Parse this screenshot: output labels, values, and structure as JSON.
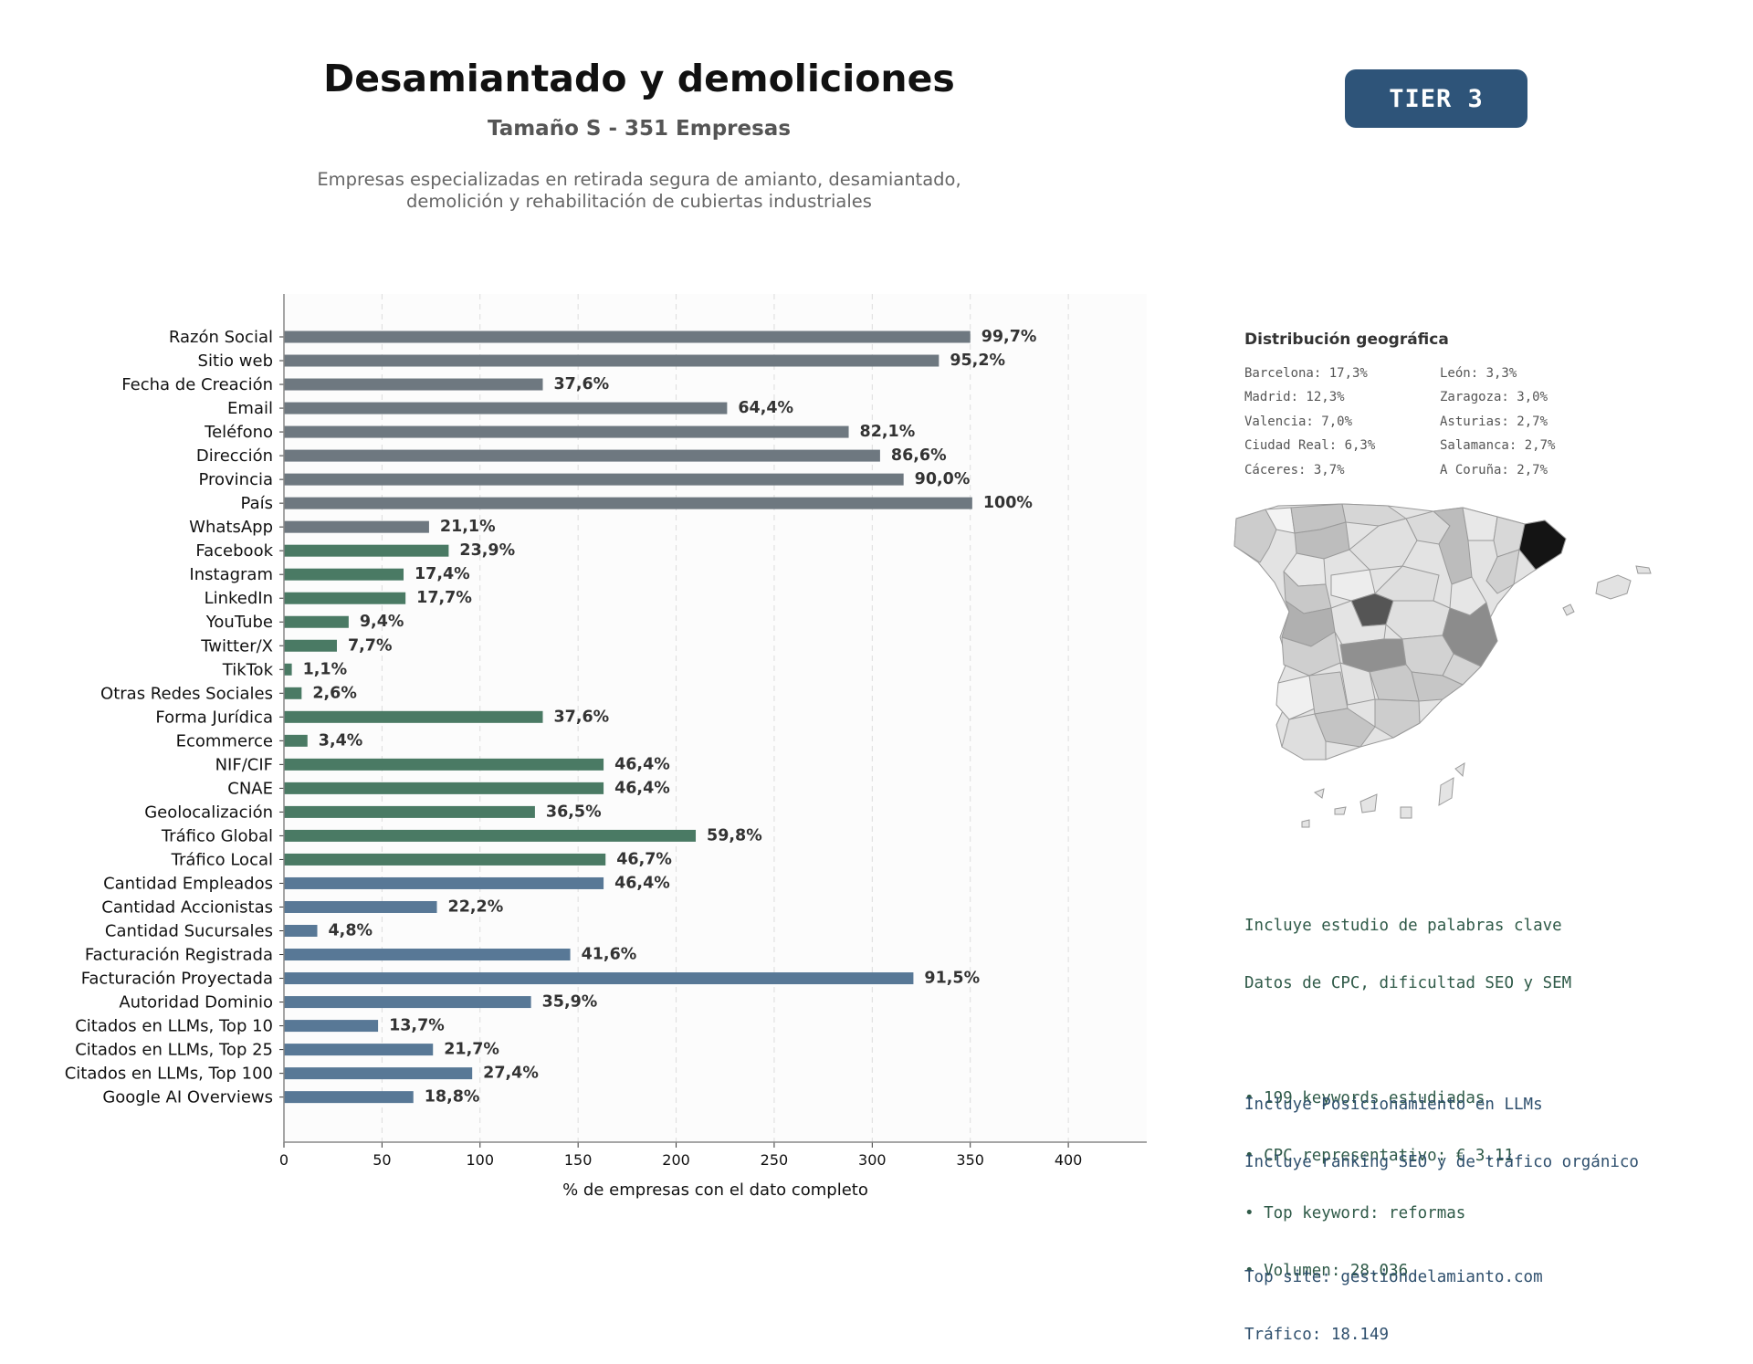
{
  "header": {
    "title": "Desamiantado y demoliciones",
    "subtitle": "Tamaño S - 351 Empresas",
    "description_line1": "Empresas especializadas en retirada segura de amianto, desamiantado,",
    "description_line2": "demolición y rehabilitación de cubiertas industriales",
    "tier_label": "TIER 3"
  },
  "colors": {
    "gray_bar": "#6e7880",
    "green_bar": "#4a7a64",
    "blue_bar": "#587896",
    "badge": "#2e5479"
  },
  "chart_data": {
    "type": "bar",
    "orientation": "horizontal",
    "xlabel": "% de empresas con el dato completo",
    "ylabel": "",
    "xlim": [
      0,
      440
    ],
    "xticks": [
      0,
      50,
      100,
      150,
      200,
      250,
      300,
      350,
      400
    ],
    "grid": "vertical dashed",
    "categories": [
      "Razón Social",
      "Sitio web",
      "Fecha de Creación",
      "Email",
      "Teléfono",
      "Dirección",
      "Provincia",
      "País",
      "WhatsApp",
      "Facebook",
      "Instagram",
      "LinkedIn",
      "YouTube",
      "Twitter/X",
      "TikTok",
      "Otras Redes Sociales",
      "Forma Jurídica",
      "Ecommerce",
      "NIF/CIF",
      "CNAE",
      "Geolocalización",
      "Tráfico Global",
      "Tráfico Local",
      "Cantidad Empleados",
      "Cantidad Accionistas",
      "Cantidad Sucursales",
      "Facturación Registrada",
      "Facturación Proyectada",
      "Autoridad Dominio",
      "Citados en LLMs, Top 10",
      "Citados en LLMs, Top 25",
      "Citados en LLMs, Top 100",
      "Google AI Overviews"
    ],
    "values": [
      350,
      334,
      132,
      226,
      288,
      304,
      316,
      351,
      74,
      84,
      61,
      62,
      33,
      27,
      4,
      9,
      132,
      12,
      163,
      163,
      128,
      210,
      164,
      163,
      78,
      17,
      146,
      321,
      126,
      48,
      76,
      96,
      66
    ],
    "labels": [
      "99,7%",
      "95,2%",
      "37,6%",
      "64,4%",
      "82,1%",
      "86,6%",
      "90,0%",
      "100%",
      "21,1%",
      "23,9%",
      "17,4%",
      "17,7%",
      "9,4%",
      "7,7%",
      "1,1%",
      "2,6%",
      "37,6%",
      "3,4%",
      "46,4%",
      "46,4%",
      "36,5%",
      "59,8%",
      "46,7%",
      "46,4%",
      "22,2%",
      "4,8%",
      "41,6%",
      "91,5%",
      "35,9%",
      "13,7%",
      "21,7%",
      "27,4%",
      "18,8%"
    ],
    "groups": [
      "gray",
      "gray",
      "gray",
      "gray",
      "gray",
      "gray",
      "gray",
      "gray",
      "gray",
      "green",
      "green",
      "green",
      "green",
      "green",
      "green",
      "green",
      "green",
      "green",
      "green",
      "green",
      "green",
      "green",
      "green",
      "blue",
      "blue",
      "blue",
      "blue",
      "blue",
      "blue",
      "blue",
      "blue",
      "blue",
      "blue"
    ]
  },
  "geo": {
    "title": "Distribución geográfica",
    "items": [
      "Barcelona: 17,3%",
      "León: 3,3%",
      "Madrid: 12,3%",
      "Zaragoza: 3,0%",
      "Valencia: 7,0%",
      "Asturias: 2,7%",
      "Ciudad Real: 6,3%",
      "Salamanca: 2,7%",
      "Cáceres: 3,7%",
      "A Coruña: 2,7%"
    ]
  },
  "seo": {
    "line1": "Incluye estudio de palabras clave",
    "line2": "Datos de CPC, dificultad SEO y SEM",
    "bullet1": "• 199 keywords estudiadas",
    "bullet2": "• CPC representativo: € 3.11",
    "bullet3": "• Top keyword: reformas",
    "bullet4": "• Volumen: 28.036"
  },
  "llm": {
    "line1": "Incluye Posicionamiento en LLMs",
    "line2": "Incluye ranking SEO y de tráfico orgánico",
    "top_site": "Top site: gestiondelamianto.com",
    "traffic": "Tráfico: 18.149"
  }
}
